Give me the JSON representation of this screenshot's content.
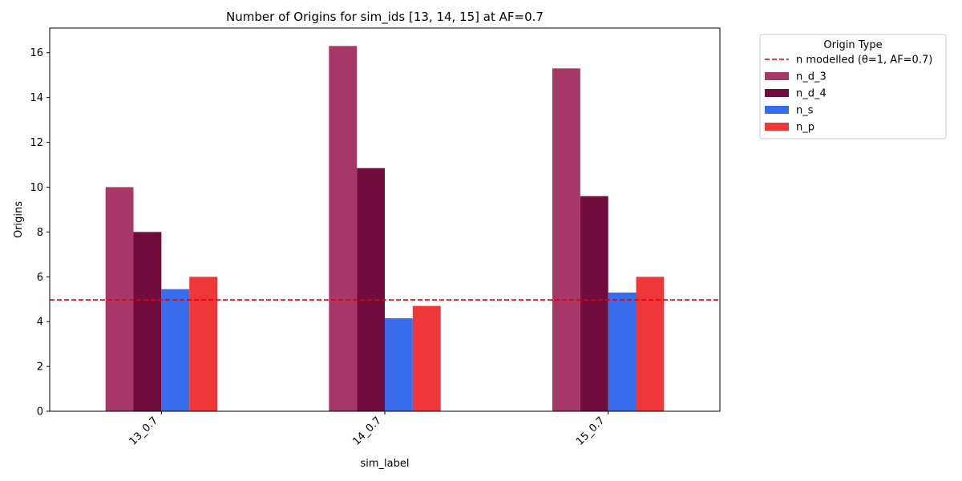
{
  "chart_data": {
    "type": "bar",
    "title": "Number of Origins for sim_ids [13, 14, 15] at AF=0.7",
    "xlabel": "sim_label",
    "ylabel": "Origins",
    "categories": [
      "13_0.7",
      "14_0.7",
      "15_0.7"
    ],
    "ylim": [
      0,
      17.1
    ],
    "yticks": [
      0,
      2,
      4,
      6,
      8,
      10,
      12,
      14,
      16
    ],
    "series": [
      {
        "name": "n_d_3",
        "color": "#a63868",
        "values": [
          10.0,
          16.3,
          15.3
        ]
      },
      {
        "name": "n_d_4",
        "color": "#700d3c",
        "values": [
          8.0,
          10.85,
          9.6
        ]
      },
      {
        "name": "n_s",
        "color": "#376ded",
        "values": [
          5.45,
          4.15,
          5.3
        ]
      },
      {
        "name": "n_p",
        "color": "#ef3639",
        "values": [
          6.0,
          4.7,
          6.0
        ]
      }
    ],
    "reference_line": {
      "name": "n modelled (θ=1, AF=0.7)",
      "value": 4.97,
      "color": "#e00000",
      "style": "dashed"
    },
    "legend": {
      "title": "Origin Type",
      "placement": "outside-right-top"
    },
    "grid": false
  }
}
